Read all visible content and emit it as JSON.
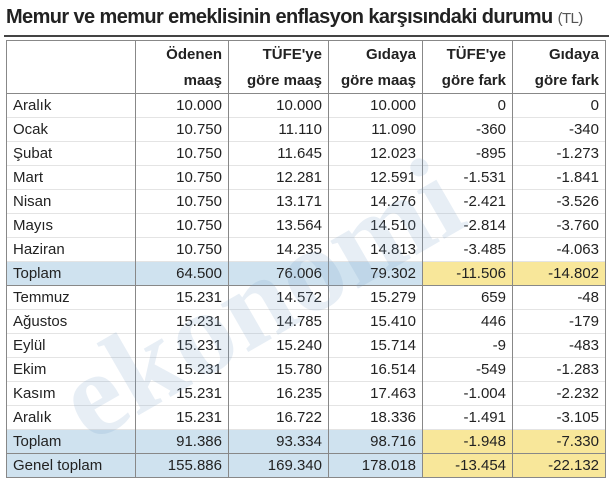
{
  "title": "Memur ve memur emeklisinin enflasyon karşısındaki durumu",
  "unit": "(TL)",
  "watermark": "ekonomi",
  "table": {
    "headers": [
      [
        "Ödenen",
        "maaş"
      ],
      [
        "TÜFE'ye",
        "göre maaş"
      ],
      [
        "Gıdaya",
        "göre maaş"
      ],
      [
        "TÜFE'ye",
        "göre fark"
      ],
      [
        "Gıdaya",
        "göre fark"
      ]
    ],
    "rows": [
      [
        "Aralık",
        "10.000",
        "10.000",
        "10.000",
        "0",
        "0"
      ],
      [
        "Ocak",
        "10.750",
        "11.110",
        "11.090",
        "-360",
        "-340"
      ],
      [
        "Şubat",
        "10.750",
        "11.645",
        "12.023",
        "-895",
        "-1.273"
      ],
      [
        "Mart",
        "10.750",
        "12.281",
        "12.591",
        "-1.531",
        "-1.841"
      ],
      [
        "Nisan",
        "10.750",
        "13.171",
        "14.276",
        "-2.421",
        "-3.526"
      ],
      [
        "Mayıs",
        "10.750",
        "13.564",
        "14.510",
        "-2.814",
        "-3.760"
      ],
      [
        "Haziran",
        "10.750",
        "14.235",
        "14.813",
        "-3.485",
        "-4.063"
      ],
      [
        "Toplam",
        "64.500",
        "76.006",
        "79.302",
        "-11.506",
        "-14.802"
      ],
      [
        "Temmuz",
        "15.231",
        "14.572",
        "15.279",
        "659",
        "-48"
      ],
      [
        "Ağustos",
        "15.231",
        "14.785",
        "15.410",
        "446",
        "-179"
      ],
      [
        "Eylül",
        "15.231",
        "15.240",
        "15.714",
        "-9",
        "-483"
      ],
      [
        "Ekim",
        "15.231",
        "15.780",
        "16.514",
        "-549",
        "-1.283"
      ],
      [
        "Kasım",
        "15.231",
        "16.235",
        "17.463",
        "-1.004",
        "-2.232"
      ],
      [
        "Aralık",
        "15.231",
        "16.722",
        "18.336",
        "-1.491",
        "-3.105"
      ],
      [
        "Toplam",
        "91.386",
        "93.334",
        "98.716",
        "-1.948",
        "-7.330"
      ],
      [
        "Genel toplam",
        "155.886",
        "169.340",
        "178.018",
        "-13.454",
        "-22.132"
      ]
    ]
  }
}
